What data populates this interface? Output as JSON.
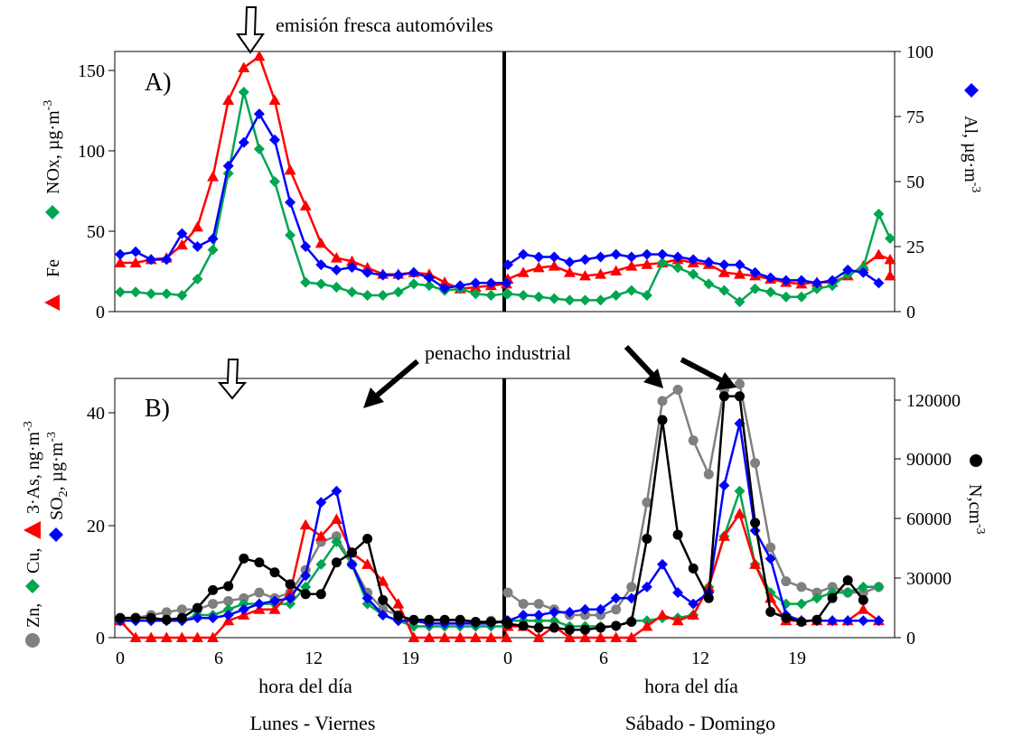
{
  "annotations": {
    "fresh_emission": "emisión fresca automóviles",
    "industrial_plume": "penacho industrial"
  },
  "bottom_labels": {
    "xlabel_left": "hora del día",
    "xlabel_right": "hora del día",
    "period_left": "Lunes - Viernes",
    "period_right": "Sábado - Domingo"
  },
  "chart_data": [
    {
      "type": "line",
      "panel_label": "A)",
      "x_tick_labels": [
        "0",
        "6",
        "12",
        "19",
        "0",
        "6",
        "12",
        "19"
      ],
      "x_index_range": [
        0,
        97
      ],
      "ylim_left": [
        0,
        160
      ],
      "yticks_left": [
        "0",
        "50",
        "100",
        "150"
      ],
      "ylim_right": [
        0,
        100
      ],
      "yticks_right": [
        "0",
        "25",
        "50",
        "75",
        "100"
      ],
      "left_axis_label": {
        "fe": "Fe",
        "nox": "NOx, µg·m",
        "nox_exp": "-3"
      },
      "right_axis_label": {
        "al": "Al, µg·m",
        "al_exp": "-3"
      },
      "series": [
        {
          "name": "Fe",
          "color": "#ff0000",
          "marker": "triangle",
          "axis": "left",
          "values": [
            30,
            30,
            32,
            33,
            41,
            52,
            83,
            130,
            150,
            157,
            130,
            87,
            65,
            42,
            33,
            31,
            27,
            23,
            23,
            24,
            23,
            18,
            14,
            15,
            16,
            17,
            20,
            24,
            27,
            28,
            24,
            22,
            23,
            25,
            28,
            29,
            30,
            32,
            30,
            29,
            24,
            23,
            22,
            20,
            18,
            17,
            18,
            18,
            22,
            28,
            35,
            32,
            22
          ]
        },
        {
          "name": "NOx",
          "color": "#00a550",
          "marker": "diamond",
          "axis": "left",
          "values": [
            12,
            12,
            11,
            11,
            10,
            20,
            38,
            85,
            135,
            100,
            80,
            47,
            18,
            17,
            15,
            12,
            10,
            10,
            12,
            17,
            16,
            13,
            14,
            11,
            10,
            11,
            11,
            10,
            9,
            8,
            7,
            7,
            7,
            10,
            13,
            10,
            30,
            27,
            23,
            17,
            13,
            6,
            14,
            12,
            9,
            9,
            14,
            16,
            23,
            27,
            60,
            45
          ]
        },
        {
          "name": "Al",
          "color": "#0000ff",
          "marker": "diamond",
          "axis": "right",
          "values": [
            22,
            23,
            20,
            20,
            30,
            25,
            28,
            56,
            65,
            76,
            66,
            42,
            25,
            18,
            16,
            17,
            15,
            14,
            14,
            15,
            13,
            9,
            10,
            11,
            11,
            11,
            18,
            22,
            21,
            21,
            19,
            20,
            21,
            22,
            21,
            22,
            22,
            21,
            20,
            19,
            18,
            18,
            15,
            13,
            12,
            12,
            11,
            12,
            16,
            15,
            11
          ]
        }
      ]
    },
    {
      "type": "line",
      "panel_label": "B)",
      "x_tick_labels": [
        "0",
        "6",
        "12",
        "19",
        "0",
        "6",
        "12",
        "19"
      ],
      "x_index_range": [
        0,
        97
      ],
      "ylim_left": [
        0,
        46
      ],
      "yticks_left": [
        "0",
        "20",
        "40"
      ],
      "ylim_right": [
        0,
        131000
      ],
      "yticks_right": [
        "0",
        "30000",
        "60000",
        "90000",
        "120000"
      ],
      "left_axis_label": {
        "zn": "Zn,",
        "cu": "Cu,",
        "as": "3·As, ng·m",
        "as_exp": "-3",
        "so2": "SO",
        "so2_sub": "2",
        "so2_unit": ", µg·m",
        "so2_exp": "-3"
      },
      "right_axis_label": {
        "n": "N,cm",
        "n_exp": "-3"
      },
      "series": [
        {
          "name": "Zn",
          "color": "#808080",
          "marker": "circle",
          "axis": "left",
          "values": [
            3,
            3.5,
            4,
            4.5,
            5,
            5,
            6,
            6.5,
            7,
            8,
            7,
            8,
            12,
            17,
            18,
            13,
            8,
            5,
            4,
            3,
            3,
            3,
            3,
            2.5,
            3,
            2.5,
            8,
            6,
            6,
            5,
            4,
            4,
            4,
            5,
            9,
            24,
            42,
            44,
            35,
            29,
            44,
            45,
            31,
            16,
            10,
            9,
            8,
            9,
            8,
            8,
            9
          ]
        },
        {
          "name": "Cu",
          "color": "#00a550",
          "marker": "diamond",
          "axis": "left",
          "values": [
            3,
            3,
            3,
            3,
            3,
            4,
            4,
            5,
            6,
            6,
            6,
            6,
            9,
            13,
            17,
            13,
            6,
            4,
            3,
            2,
            2,
            2,
            2,
            2,
            2,
            2,
            3,
            3,
            3,
            3,
            2,
            2,
            2,
            2,
            3,
            3,
            3.5,
            3.5,
            4,
            9,
            18,
            26,
            13,
            8,
            6,
            6,
            7,
            8,
            8,
            9,
            9
          ]
        },
        {
          "name": "3·As",
          "color": "#ff0000",
          "marker": "triangle",
          "axis": "left",
          "values": [
            3,
            0,
            0,
            0,
            0,
            0,
            0,
            3,
            4,
            5,
            5,
            8,
            20,
            18,
            21,
            15,
            13,
            10,
            6,
            0,
            0,
            0,
            0,
            0,
            0,
            0,
            2,
            2,
            0,
            2,
            0,
            0,
            0,
            0,
            0,
            2,
            4,
            3,
            4,
            9,
            18,
            22,
            13,
            7,
            3,
            3,
            3,
            3,
            3,
            5,
            3
          ]
        },
        {
          "name": "SO2",
          "color": "#0000ff",
          "marker": "diamond",
          "axis": "left",
          "values": [
            3,
            3,
            3,
            3,
            3,
            3.5,
            3.5,
            4,
            5,
            6,
            6.5,
            7,
            11,
            24,
            26,
            13,
            7,
            4,
            3,
            3,
            2.5,
            2.5,
            2.5,
            2.5,
            2.5,
            3,
            3,
            4,
            4,
            4.5,
            4.5,
            5,
            5,
            7,
            7,
            9,
            13,
            8,
            6,
            8,
            27,
            38,
            19,
            14,
            4,
            3,
            3,
            3,
            3,
            3,
            3
          ]
        },
        {
          "name": "N",
          "color": "#000000",
          "marker": "circle",
          "axis": "right",
          "values": [
            10000,
            10000,
            10000,
            9000,
            10000,
            15000,
            24000,
            26000,
            40000,
            38000,
            33000,
            27000,
            22000,
            22000,
            38000,
            43000,
            50000,
            19000,
            11000,
            9000,
            9000,
            9000,
            9000,
            8000,
            8000,
            8000,
            7000,
            6000,
            5000,
            5000,
            4000,
            4000,
            5000,
            6000,
            8000,
            50000,
            110000,
            52000,
            35000,
            20000,
            122000,
            122000,
            58000,
            13000,
            10000,
            8000,
            9000,
            20000,
            29000,
            19000
          ]
        }
      ]
    }
  ]
}
